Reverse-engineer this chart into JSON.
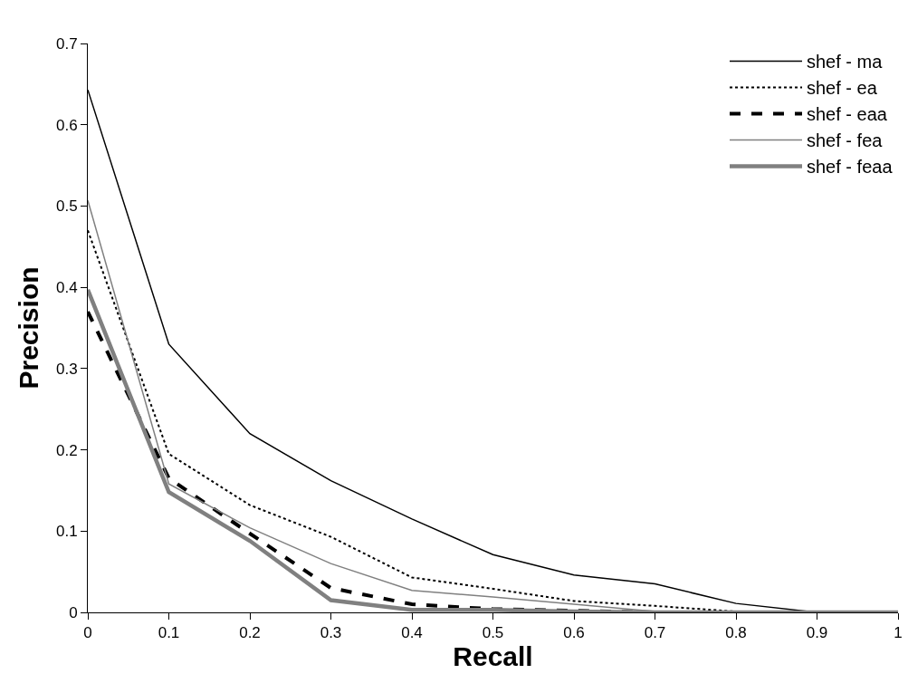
{
  "chart_data": {
    "type": "line",
    "xlabel": "Recall",
    "ylabel": "Precision",
    "x": [
      0,
      0.1,
      0.2,
      0.3,
      0.4,
      0.5,
      0.6,
      0.7,
      0.8,
      0.9,
      1
    ],
    "xlim": [
      0,
      1
    ],
    "xticks": [
      0,
      0.1,
      0.2,
      0.3,
      0.4,
      0.5,
      0.6,
      0.7,
      0.8,
      0.9,
      1
    ],
    "ylim": [
      0,
      0.7
    ],
    "yticks": [
      0,
      0.1,
      0.2,
      0.3,
      0.4,
      0.5,
      0.6,
      0.7
    ],
    "grid": false,
    "legend": "top right",
    "marker": "none",
    "series": [
      {
        "name": "shef - ma",
        "color": "#000000",
        "line_style": "solid",
        "values": [
          0.643,
          0.33,
          0.22,
          0.162,
          0.115,
          0.071,
          0.046,
          0.035,
          0.011,
          0,
          0
        ]
      },
      {
        "name": "shef - ea",
        "color": "#000000",
        "line_style": "dotted",
        "values": [
          0.47,
          0.195,
          0.132,
          0.093,
          0.043,
          0.029,
          0.014,
          0.008,
          0.001,
          0,
          0
        ]
      },
      {
        "name": "shef - eaa",
        "color": "#000000",
        "line_style": "dashed",
        "values": [
          0.37,
          0.165,
          0.097,
          0.03,
          0.01,
          0.004,
          0.002,
          0,
          0,
          0,
          0
        ]
      },
      {
        "name": "shef - fea",
        "color": "#808080",
        "line_style": "solid",
        "values": [
          0.507,
          0.158,
          0.104,
          0.06,
          0.027,
          0.019,
          0.01,
          0.001,
          0,
          0,
          0
        ]
      },
      {
        "name": "shef - feaa",
        "color": "#808080",
        "line_style": "solid",
        "values": [
          0.397,
          0.148,
          0.088,
          0.015,
          0.003,
          0.003,
          0.001,
          0,
          0,
          0,
          0
        ]
      }
    ]
  }
}
